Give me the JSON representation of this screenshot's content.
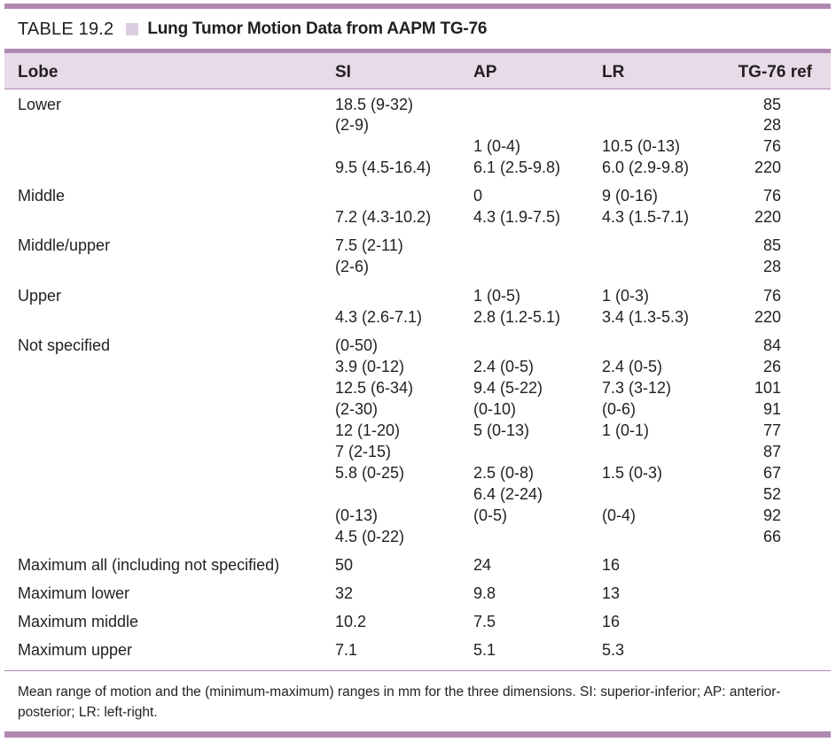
{
  "title": {
    "label": "TABLE 19.2",
    "caption": "Lung Tumor Motion Data from AAPM TG-76"
  },
  "columns": [
    "Lobe",
    "SI",
    "AP",
    "LR",
    "TG-76 ref"
  ],
  "rows": [
    {
      "lobe": "Lower",
      "si": "18.5 (9-32)",
      "ap": "",
      "lr": "",
      "ref": "85"
    },
    {
      "lobe": "",
      "si": "(2-9)",
      "ap": "",
      "lr": "",
      "ref": "28"
    },
    {
      "lobe": "",
      "si": "",
      "ap": "1 (0-4)",
      "lr": "10.5 (0-13)",
      "ref": "76"
    },
    {
      "lobe": "",
      "si": "9.5 (4.5-16.4)",
      "ap": "6.1 (2.5-9.8)",
      "lr": "6.0 (2.9-9.8)",
      "ref": "220"
    },
    {
      "lobe": "Middle",
      "si": "",
      "ap": "0",
      "lr": "9 (0-16)",
      "ref": "76"
    },
    {
      "lobe": "",
      "si": "7.2 (4.3-10.2)",
      "ap": "4.3 (1.9-7.5)",
      "lr": "4.3 (1.5-7.1)",
      "ref": "220"
    },
    {
      "lobe": "Middle/upper",
      "si": "7.5 (2-11)",
      "ap": "",
      "lr": "",
      "ref": "85"
    },
    {
      "lobe": "",
      "si": "(2-6)",
      "ap": "",
      "lr": "",
      "ref": "28"
    },
    {
      "lobe": "Upper",
      "si": "",
      "ap": "1 (0-5)",
      "lr": "1 (0-3)",
      "ref": "76"
    },
    {
      "lobe": "",
      "si": "4.3 (2.6-7.1)",
      "ap": "2.8 (1.2-5.1)",
      "lr": "3.4 (1.3-5.3)",
      "ref": "220"
    },
    {
      "lobe": "Not specified",
      "si": "(0-50)",
      "ap": "",
      "lr": "",
      "ref": "84"
    },
    {
      "lobe": "",
      "si": "3.9 (0-12)",
      "ap": "2.4 (0-5)",
      "lr": "2.4 (0-5)",
      "ref": "26"
    },
    {
      "lobe": "",
      "si": "12.5 (6-34)",
      "ap": "9.4 (5-22)",
      "lr": "7.3 (3-12)",
      "ref": "101"
    },
    {
      "lobe": "",
      "si": "(2-30)",
      "ap": "(0-10)",
      "lr": "(0-6)",
      "ref": "91"
    },
    {
      "lobe": "",
      "si": "12 (1-20)",
      "ap": "5 (0-13)",
      "lr": "1 (0-1)",
      "ref": "77"
    },
    {
      "lobe": "",
      "si": "7 (2-15)",
      "ap": "",
      "lr": "",
      "ref": "87"
    },
    {
      "lobe": "",
      "si": "5.8 (0-25)",
      "ap": "2.5 (0-8)",
      "lr": "1.5 (0-3)",
      "ref": "67"
    },
    {
      "lobe": "",
      "si": "",
      "ap": "6.4 (2-24)",
      "lr": "",
      "ref": "52"
    },
    {
      "lobe": "",
      "si": "(0-13)",
      "ap": "(0-5)",
      "lr": "(0-4)",
      "ref": "92"
    },
    {
      "lobe": "",
      "si": "4.5 (0-22)",
      "ap": "",
      "lr": "",
      "ref": "66"
    },
    {
      "lobe": "Maximum all (including not specified)",
      "si": "50",
      "ap": "24",
      "lr": "16",
      "ref": ""
    },
    {
      "lobe": "Maximum lower",
      "si": "32",
      "ap": "9.8",
      "lr": "13",
      "ref": ""
    },
    {
      "lobe": "Maximum middle",
      "si": "10.2",
      "ap": "7.5",
      "lr": "16",
      "ref": ""
    },
    {
      "lobe": "Maximum upper",
      "si": "7.1",
      "ap": "5.1",
      "lr": "5.3",
      "ref": ""
    }
  ],
  "footnote": "Mean range of motion and the (minimum-maximum) ranges in mm for the three dimensions. SI: superior-inferior; AP: anterior-posterior; LR: left-right.",
  "colors": {
    "accent_bar": "#b089b3",
    "header_fill": "#e6dbe7",
    "swatch": "#ddcde2",
    "text": "#231f20"
  }
}
